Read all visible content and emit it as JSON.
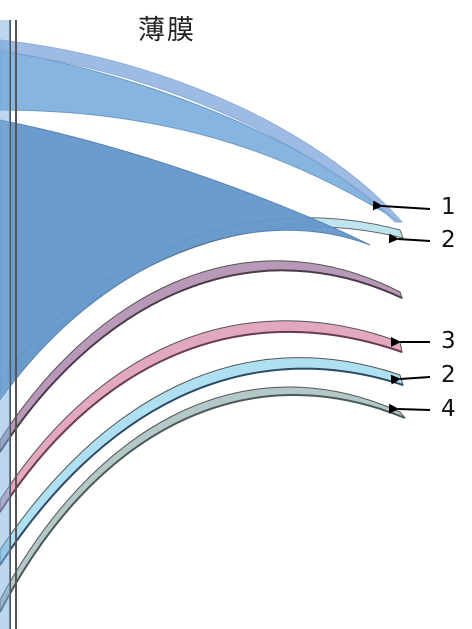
{
  "title": "薄膜",
  "labels": [
    "1",
    "2",
    "3",
    "2",
    "4"
  ],
  "colors": {
    "film_top": "#8eb0e0",
    "blue_layer": "#7aaedc",
    "blue_deep": "#6597cc",
    "light_cyan": "#bfe6f0",
    "mauve": "#b89ab8",
    "pink": "#e2a8c0",
    "sky": "#aee0f2",
    "gray_green": "#b4c7c9",
    "outline": "#555555"
  }
}
